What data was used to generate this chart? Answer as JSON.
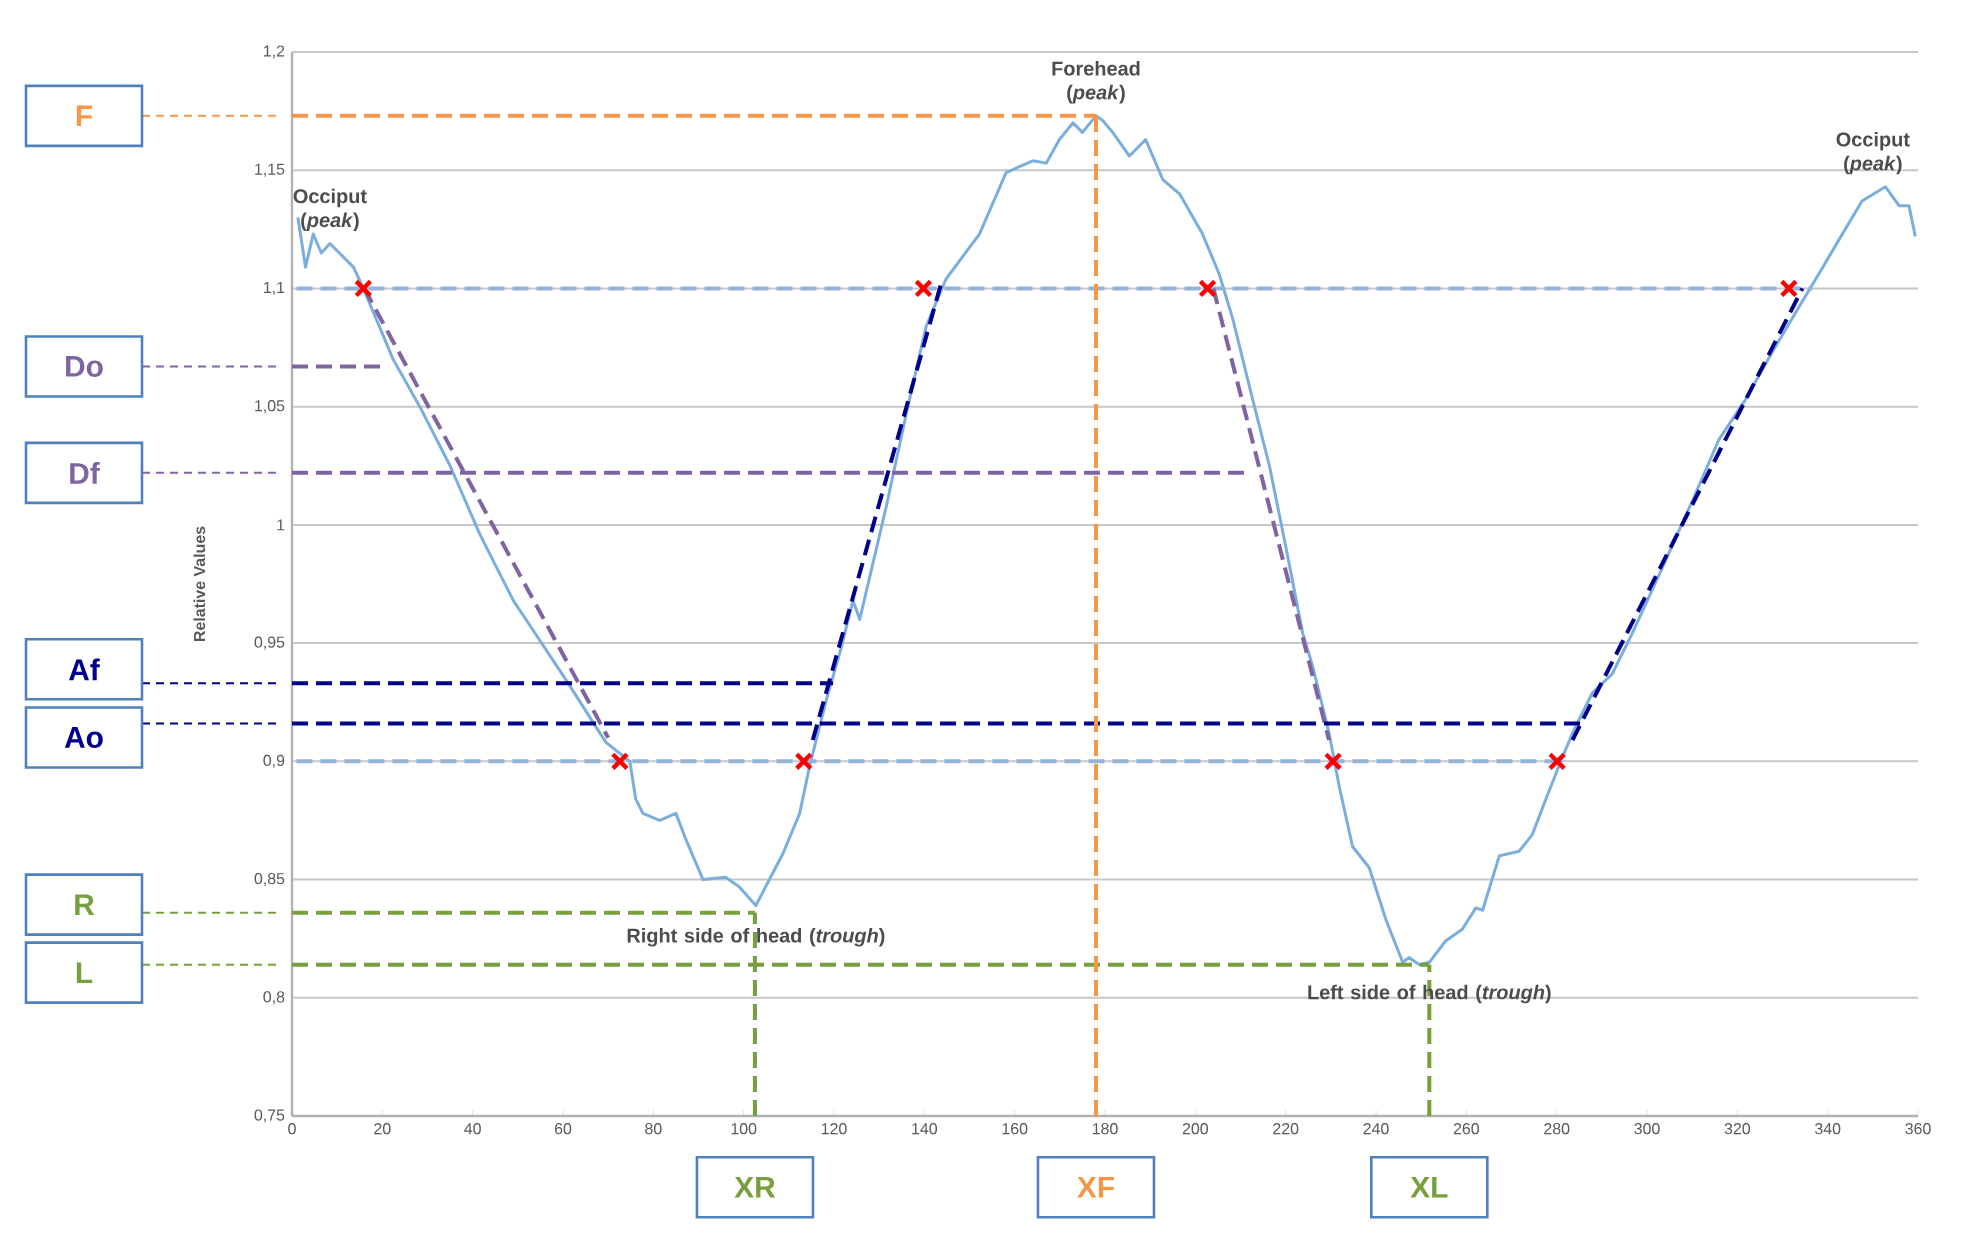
{
  "chart_data": {
    "type": "line",
    "ylabel": "Relative Values",
    "xlim": [
      0,
      360
    ],
    "xticks": [
      0,
      20,
      40,
      60,
      80,
      100,
      120,
      140,
      160,
      180,
      200,
      220,
      240,
      260,
      280,
      300,
      320,
      340,
      360
    ],
    "ylim": [
      0.75,
      1.2
    ],
    "yticks": [
      {
        "value": 0.75,
        "label": "0,75"
      },
      {
        "value": 0.8,
        "label": "0,8"
      },
      {
        "value": 0.85,
        "label": "0,85"
      },
      {
        "value": 0.9,
        "label": "0,9"
      },
      {
        "value": 0.95,
        "label": "0,95"
      },
      {
        "value": 1,
        "label": "1"
      },
      {
        "value": 1.05,
        "label": "1,05"
      },
      {
        "value": 1.1,
        "label": "1,1"
      },
      {
        "value": 1.15,
        "label": "1,15"
      },
      {
        "value": 1.2,
        "label": "1,2"
      }
    ],
    "grid": "y",
    "legend": "left",
    "series": [
      {
        "type": "line",
        "color": "#7aaedc",
        "line_style": "solid",
        "marker": "none",
        "x": [
          1.3,
          3,
          4.7,
          6.5,
          8.4,
          13.6,
          15.8,
          22.4,
          28.3,
          35,
          41.6,
          49,
          51.8,
          60.8,
          69.5,
          74.8,
          76.1,
          77.7,
          81.4,
          85,
          87.2,
          91,
          96,
          99,
          102.7,
          108.7,
          112.4,
          114.6,
          118.3,
          121.3,
          124.2,
          125.7,
          131.6,
          136,
          140.4,
          144.8,
          152.2,
          158.1,
          164,
          167,
          169.9,
          172.9,
          175,
          178,
          179.5,
          181.7,
          185.4,
          189,
          192.8,
          196.5,
          201.6,
          205.3,
          208.3,
          212.7,
          216.4,
          220,
          223.8,
          226,
          229.6,
          231.9,
          234.8,
          238.5,
          242.2,
          245.9,
          247.3,
          249.6,
          251.8,
          255.4,
          259.1,
          262.1,
          263.6,
          267.3,
          271.7,
          274.6,
          277.6,
          280.5,
          283.5,
          287.9,
          292.3,
          296.7,
          302.7,
          310,
          315.9,
          321.8,
          327.7,
          333.6,
          338,
          341.7,
          347.6,
          352.8,
          355.8,
          358,
          359.4
        ],
        "values": [
          1.13,
          1.109,
          1.123,
          1.115,
          1.119,
          1.109,
          1.1,
          1.07,
          1.05,
          1.025,
          0.996,
          0.968,
          0.96,
          0.934,
          0.908,
          0.9,
          0.884,
          0.878,
          0.875,
          0.878,
          0.867,
          0.85,
          0.851,
          0.847,
          0.839,
          0.861,
          0.878,
          0.898,
          0.926,
          0.946,
          0.968,
          0.96,
          1.008,
          1.047,
          1.084,
          1.104,
          1.123,
          1.149,
          1.154,
          1.153,
          1.163,
          1.17,
          1.166,
          1.173,
          1.171,
          1.166,
          1.156,
          1.163,
          1.146,
          1.14,
          1.123,
          1.106,
          1.087,
          1.053,
          1.025,
          0.991,
          0.954,
          0.94,
          0.912,
          0.889,
          0.864,
          0.855,
          0.833,
          0.815,
          0.817,
          0.814,
          0.815,
          0.824,
          0.829,
          0.838,
          0.837,
          0.86,
          0.862,
          0.869,
          0.884,
          0.898,
          0.912,
          0.929,
          0.937,
          0.954,
          0.979,
          1.01,
          1.036,
          1.053,
          1.073,
          1.092,
          1.106,
          1.118,
          1.137,
          1.143,
          1.135,
          1.135,
          1.122
        ]
      },
      {
        "type": "line",
        "color": "#95b3d7",
        "line_style": "dashed",
        "marker": "none",
        "x": [
          1,
          336.6
        ],
        "values": [
          1.1,
          1.1
        ]
      },
      {
        "type": "line",
        "color": "#95b3d7",
        "line_style": "dashed",
        "marker": "none",
        "x": [
          1,
          280
        ],
        "values": [
          0.9,
          0.9
        ]
      },
      {
        "type": "line",
        "color": "#8064a2",
        "line_style": "dashed",
        "marker": "none",
        "x": [
          16,
          70
        ],
        "values": [
          1.1,
          0.91
        ]
      },
      {
        "type": "line",
        "color": "#8064a2",
        "line_style": "dashed",
        "marker": "none",
        "x": [
          204,
          229.6
        ],
        "values": [
          1.1,
          0.909
        ]
      },
      {
        "type": "line",
        "color": "#00008b",
        "line_style": "dashed",
        "marker": "none",
        "x": [
          115.3,
          144
        ],
        "values": [
          0.909,
          1.104
        ]
      },
      {
        "type": "line",
        "color": "#00008b",
        "line_style": "dashed",
        "marker": "none",
        "x": [
          283.5,
          334.4
        ],
        "values": [
          0.909,
          1.1
        ]
      },
      {
        "type": "line",
        "name": "F",
        "color": "#f79646",
        "line_style": "dashed",
        "marker": "none",
        "x": [
          0,
          178
        ],
        "values": [
          1.173,
          1.173
        ]
      },
      {
        "type": "line",
        "name": "Do",
        "color": "#8064a2",
        "line_style": "dashed",
        "marker": "none",
        "x": [
          0,
          19.5
        ],
        "values": [
          1.067,
          1.067
        ]
      },
      {
        "type": "line",
        "name": "Df",
        "color": "#8064a2",
        "line_style": "dashed",
        "marker": "none",
        "x": [
          0,
          212
        ],
        "values": [
          1.022,
          1.022
        ]
      },
      {
        "type": "line",
        "name": "Af",
        "color": "#00008b",
        "line_style": "dashed",
        "marker": "none",
        "x": [
          0,
          119.8
        ],
        "values": [
          0.933,
          0.933
        ]
      },
      {
        "type": "line",
        "name": "Ao",
        "color": "#00008b",
        "line_style": "dashed",
        "marker": "none",
        "x": [
          0,
          286.4
        ],
        "values": [
          0.916,
          0.916
        ]
      },
      {
        "type": "line",
        "name": "R",
        "color": "#77a03c",
        "line_style": "dashed",
        "marker": "none",
        "x": [
          0,
          102.5
        ],
        "values": [
          0.836,
          0.836
        ]
      },
      {
        "type": "line",
        "name": "L",
        "color": "#77a03c",
        "line_style": "dashed",
        "marker": "none",
        "x": [
          0,
          251.8
        ],
        "values": [
          0.814,
          0.814
        ]
      },
      {
        "type": "line",
        "name": "XR",
        "color": "#77a03c",
        "line_style": "dashed",
        "marker": "none",
        "x": [
          102.5,
          102.5
        ],
        "values": [
          0.75,
          0.836
        ]
      },
      {
        "type": "line",
        "name": "XF",
        "color": "#f79646",
        "line_style": "dashed",
        "marker": "none",
        "x": [
          178,
          178
        ],
        "values": [
          0.75,
          1.173
        ]
      },
      {
        "type": "line",
        "name": "XL",
        "color": "#77a03c",
        "line_style": "dashed",
        "marker": "none",
        "x": [
          251.8,
          251.8
        ],
        "values": [
          0.75,
          0.814
        ]
      },
      {
        "type": "scatter",
        "color": "#ff0000",
        "marker": "cross",
        "x": [
          15.8,
          139.8,
          202.7,
          331.4,
          72.6,
          113.3,
          230.5,
          280.1
        ],
        "values": [
          1.1,
          1.1,
          1.1,
          1.1,
          0.9,
          0.9,
          0.9,
          0.9
        ]
      }
    ],
    "annotations": [
      {
        "text": "Occiput (*peak*)",
        "x": 8.4,
        "y": 1.119
      },
      {
        "text": "Forehead (*peak*)",
        "x": 178,
        "y": 1.173
      },
      {
        "text": "Occiput (*peak*)",
        "x": 350,
        "y": 1.143
      },
      {
        "text": "Right side of head (*trough*)",
        "x": 102.7,
        "y": 0.839
      },
      {
        "text": "Left side of head (*trough*)",
        "x": 251.8,
        "y": 0.815
      }
    ]
  }
}
